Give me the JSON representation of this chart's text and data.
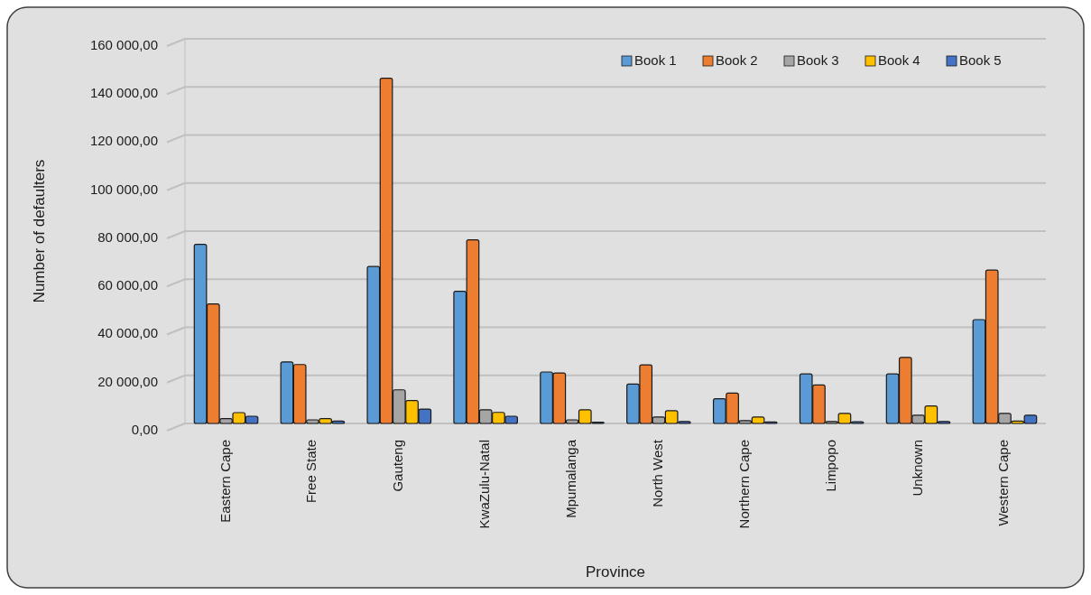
{
  "chart_data": {
    "type": "bar",
    "xlabel": "Province",
    "ylabel": "Number of defaulters",
    "categories": [
      "Eastern Cape",
      "Free State",
      "Gauteng",
      "KwaZulu-Natal",
      "Mpumalanga",
      "North West",
      "Northern Cape",
      "Limpopo",
      "Unknown",
      "Western Cape"
    ],
    "series": [
      {
        "name": "Book 1",
        "color": "#5b9bd5",
        "values": [
          74500,
          25600,
          65300,
          55000,
          21400,
          16400,
          10300,
          20600,
          20600,
          43200
        ]
      },
      {
        "name": "Book 2",
        "color": "#ed7d31",
        "values": [
          49700,
          24500,
          143600,
          76400,
          21000,
          24400,
          12600,
          16000,
          27500,
          63800
        ]
      },
      {
        "name": "Book 3",
        "color": "#a5a5a5",
        "values": [
          2000,
          1500,
          14000,
          5700,
          1500,
          2700,
          1200,
          800,
          3400,
          4200
        ]
      },
      {
        "name": "Book 4",
        "color": "#ffc000",
        "values": [
          4500,
          2000,
          9500,
          4600,
          5700,
          5300,
          2700,
          4200,
          7300,
          1000
        ]
      },
      {
        "name": "Book 5",
        "color": "#4472c4",
        "values": [
          3000,
          1000,
          6000,
          3000,
          500,
          800,
          600,
          700,
          800,
          3400
        ]
      }
    ],
    "ylim": [
      0,
      160000
    ],
    "yticks": [
      {
        "value": 0,
        "label": "0,00"
      },
      {
        "value": 20000,
        "label": "20 000,00"
      },
      {
        "value": 40000,
        "label": "40 000,00"
      },
      {
        "value": 60000,
        "label": "60 000,00"
      },
      {
        "value": 80000,
        "label": "80 000,00"
      },
      {
        "value": 100000,
        "label": "100 000,00"
      },
      {
        "value": 120000,
        "label": "120 000,00"
      },
      {
        "value": 140000,
        "label": "140 000,00"
      },
      {
        "value": 160000,
        "label": "160 000,00"
      }
    ],
    "grid": "y",
    "legend": "top right"
  }
}
